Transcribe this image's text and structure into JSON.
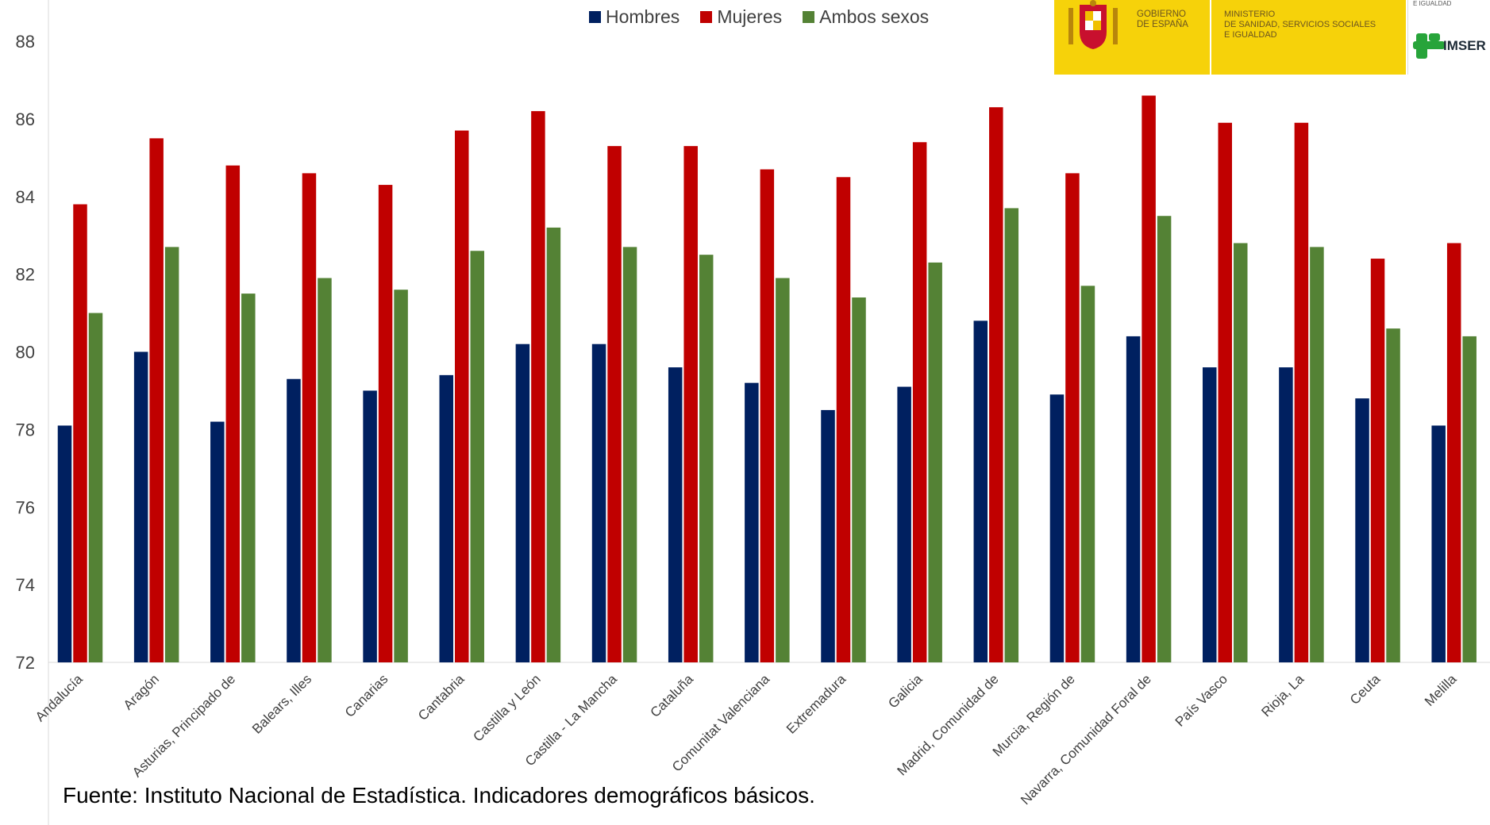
{
  "chart_data": {
    "type": "bar",
    "categories": [
      "Andalucía",
      "Aragón",
      "Asturias, Principado de",
      "Balears, Illes",
      "Canarias",
      "Cantabria",
      "Castilla y León",
      "Castilla - La Mancha",
      "Cataluña",
      "Comunitat Valenciana",
      "Extremadura",
      "Galicia",
      "Madrid, Comunidad de",
      "Murcia, Región de",
      "Navarra, Comunidad Foral de",
      "País Vasco",
      "Rioja, La",
      "Ceuta",
      "Melilla"
    ],
    "series": [
      {
        "name": "Hombres",
        "color": "#002060",
        "values": [
          78.1,
          80.0,
          78.2,
          79.3,
          79.0,
          79.4,
          80.2,
          80.2,
          79.6,
          79.2,
          78.5,
          79.1,
          80.8,
          78.9,
          80.4,
          79.6,
          79.6,
          78.8,
          78.1
        ]
      },
      {
        "name": "Mujeres",
        "color": "#c00000",
        "values": [
          83.8,
          85.5,
          84.8,
          84.6,
          84.3,
          85.7,
          86.2,
          85.3,
          85.3,
          84.7,
          84.5,
          85.4,
          86.3,
          84.6,
          86.6,
          85.9,
          85.9,
          82.4,
          82.8
        ]
      },
      {
        "name": "Ambos sexos",
        "color": "#548235",
        "values": [
          81.0,
          82.7,
          81.5,
          81.9,
          81.6,
          82.6,
          83.2,
          82.7,
          82.5,
          81.9,
          81.4,
          82.3,
          83.7,
          81.7,
          83.5,
          82.8,
          82.7,
          80.6,
          80.4
        ]
      }
    ],
    "ylim": [
      72,
      88
    ],
    "yticks": [
      72,
      74,
      76,
      78,
      80,
      82,
      84,
      86,
      88
    ],
    "legend": "top-center",
    "grid": false
  },
  "legend_items": [
    "Hombres",
    "Mujeres",
    "Ambos sexos"
  ],
  "source_note": "Fuente: Instituto Nacional de Estadística. Indicadores demográficos básicos.",
  "logos": {
    "gobierno": "GOBIERNO\nDE ESPAÑA",
    "ministerio": "MINISTERIO\nDE SANIDAD, SERVICIOS SOCIALES\nE IGUALDAD",
    "top_right_fragment": "E IGUALDAD",
    "imserso": "IMSER"
  },
  "colors": {
    "hombres": "#002060",
    "mujeres": "#c00000",
    "ambos": "#548235",
    "logo_yellow": "#f6d20a"
  }
}
